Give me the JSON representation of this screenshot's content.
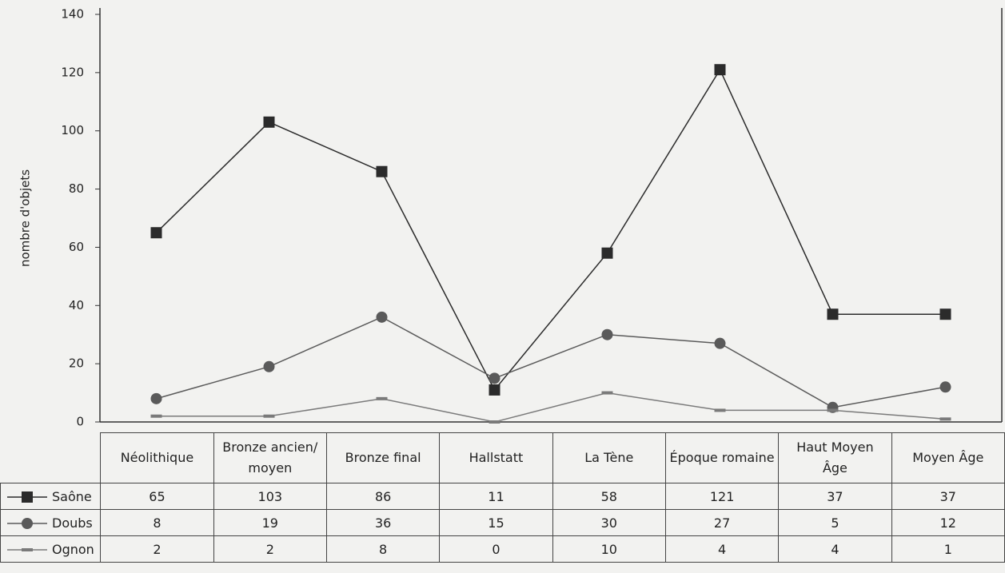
{
  "chart_data": {
    "type": "line",
    "y_label": "nombre d'objets",
    "categories": [
      "Néolithique",
      "Bronze ancien/ moyen",
      "Bronze final",
      "Hallstatt",
      "La Tène",
      "Époque romaine",
      "Haut Moyen Âge",
      "Moyen Âge"
    ],
    "series": [
      {
        "name": "Saône",
        "color": "#2b2b2b",
        "marker": "square",
        "values": [
          65,
          103,
          86,
          11,
          58,
          121,
          37,
          37
        ]
      },
      {
        "name": "Doubs",
        "color": "#5a5a5a",
        "marker": "circle",
        "values": [
          8,
          19,
          36,
          15,
          30,
          27,
          5,
          12
        ]
      },
      {
        "name": "Ognon",
        "color": "#7a7a7a",
        "marker": "dash",
        "values": [
          2,
          2,
          8,
          0,
          10,
          4,
          4,
          1
        ]
      }
    ],
    "ylim": [
      0,
      140
    ],
    "yticks": [
      0,
      20,
      40,
      60,
      80,
      100,
      120,
      140
    ]
  }
}
